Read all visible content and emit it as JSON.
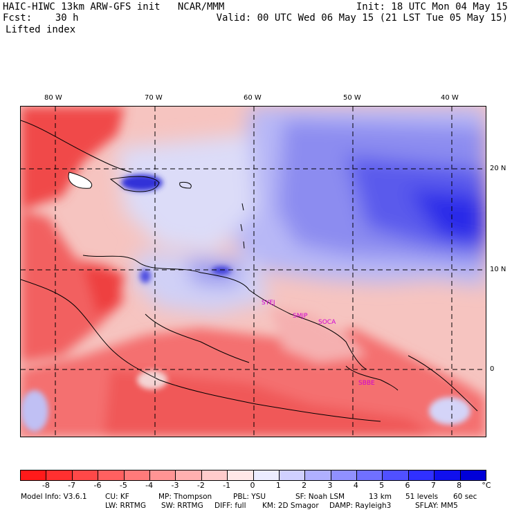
{
  "header": {
    "model_title": "HAIC-HIWC 13km ARW-GFS init   NCAR/MMM",
    "init_time": "Init: 18 UTC Mon 04 May 15",
    "fcst_label": "Fcst:    30 h",
    "valid_time": "Valid: 00 UTC Wed 06 May 15 (21 LST Tue 05 May 15)",
    "field_name": "Lifted index"
  },
  "longitude_labels": [
    "80 W",
    "70 W",
    "60 W",
    "50 W",
    "40 W"
  ],
  "latitude_labels": [
    "20 N",
    "10 N",
    "0"
  ],
  "stations": [
    "SYEJ",
    "SMJP",
    "SOCA",
    "SBBE"
  ],
  "colorbar": {
    "labels": [
      "-8",
      "-7",
      "-6",
      "-5",
      "-4",
      "-3",
      "-2",
      "-1",
      "0",
      "1",
      "2",
      "3",
      "4",
      "5",
      "6",
      "7",
      "8"
    ],
    "unit": "°C",
    "colors": [
      "#ff1a1a",
      "#ff3030",
      "#ff4848",
      "#ff6060",
      "#ff7a7a",
      "#ff9494",
      "#ffb0b0",
      "#ffcccc",
      "#ffe8e8",
      "#ececff",
      "#d0d0ff",
      "#b0b0ff",
      "#9090ff",
      "#7070ff",
      "#5050ff",
      "#3030ff",
      "#1010ee",
      "#0000d8"
    ]
  },
  "footer": {
    "line1": {
      "model_info": "Model Info: V3.6.1",
      "cu": "CU: KF",
      "mp": "MP: Thompson",
      "pbl": "PBL: YSU",
      "sf": "SF: Noah LSM",
      "res": "13 km",
      "levels": "51 levels",
      "dt": "60 sec"
    },
    "line2": {
      "lw": "LW: RRTMG",
      "sw": "SW: RRTMG",
      "diff": "DIFF: full",
      "km": "KM: 2D Smagor",
      "damp": "DAMP: Rayleigh3",
      "sflay": "SFLAY: MM5"
    }
  }
}
